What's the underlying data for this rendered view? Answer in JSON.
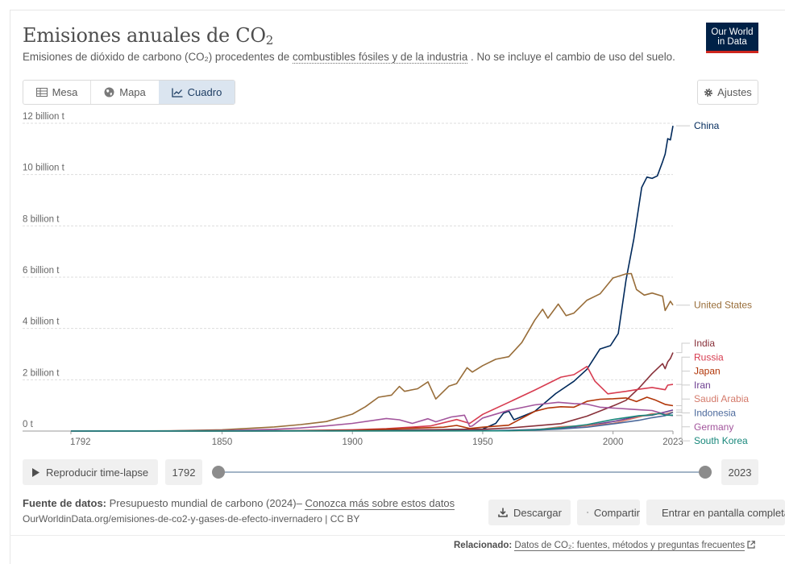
{
  "header": {
    "title": "Emisiones anuales de CO",
    "title_sub": "2",
    "subtitle_pre": "Emisiones de dióxido de carbono (CO₂) procedentes de ",
    "subtitle_link": "combustibles fósiles y de la industria",
    "subtitle_post": " . No se incluye el cambio de uso del suelo.",
    "logo_line1": "Our World",
    "logo_line2": "in Data"
  },
  "tabs": [
    {
      "label": "Mesa",
      "icon": "table-icon"
    },
    {
      "label": "Mapa",
      "icon": "globe-icon"
    },
    {
      "label": "Cuadro",
      "icon": "line-chart-icon",
      "active": true
    }
  ],
  "settings_label": "Ajustes",
  "timeline": {
    "play_label": "Reproducir time-lapse",
    "start_year": "1792",
    "end_year": "2023"
  },
  "footer": {
    "source_label": "Fuente de datos:",
    "source_text": " Presupuesto mundial de carbono (2024)– ",
    "source_link": "Conozca más sobre estos datos",
    "url_text": "OurWorldinData.org/emisiones-de-co2-y-gases-de-efecto-invernadero | CC BY",
    "download_label": "Descargar",
    "share_label": "Compartir",
    "fullscreen_label": "Entrar en pantalla completa",
    "related_label": "Relacionado:",
    "related_link": "Datos de CO₂: fuentes, métodos y preguntas frecuentes"
  },
  "chart_data": {
    "type": "line",
    "title": "Emisiones anuales de CO₂",
    "xlabel": "",
    "ylabel": "",
    "xlim": [
      1792,
      2023
    ],
    "ylim": [
      0,
      12
    ],
    "x_ticks": [
      "1792",
      "1850",
      "1900",
      "1950",
      "2000",
      "2023"
    ],
    "y_ticks": [
      {
        "value": 0,
        "label": "0 t"
      },
      {
        "value": 2,
        "label": "2 billion t"
      },
      {
        "value": 4,
        "label": "4 billion t"
      },
      {
        "value": 6,
        "label": "6 billion t"
      },
      {
        "value": 8,
        "label": "8 billion t"
      },
      {
        "value": 10,
        "label": "10 billion t"
      },
      {
        "value": 12,
        "label": "12 billion t"
      }
    ],
    "grid": true,
    "legend": "right end labels",
    "series": [
      {
        "name": "China",
        "color": "#00295b",
        "points": [
          [
            1792,
            0
          ],
          [
            1900,
            0.01
          ],
          [
            1950,
            0.08
          ],
          [
            1955,
            0.3
          ],
          [
            1958,
            0.7
          ],
          [
            1960,
            0.78
          ],
          [
            1962,
            0.44
          ],
          [
            1970,
            0.77
          ],
          [
            1978,
            1.46
          ],
          [
            1985,
            1.94
          ],
          [
            1990,
            2.41
          ],
          [
            1995,
            3.2
          ],
          [
            1999,
            3.33
          ],
          [
            2002,
            3.8
          ],
          [
            2005,
            5.9
          ],
          [
            2008,
            7.5
          ],
          [
            2011,
            9.5
          ],
          [
            2013,
            9.9
          ],
          [
            2015,
            9.85
          ],
          [
            2017,
            9.95
          ],
          [
            2019,
            10.5
          ],
          [
            2020,
            10.8
          ],
          [
            2021,
            11.4
          ],
          [
            2022,
            11.35
          ],
          [
            2023,
            11.9
          ]
        ]
      },
      {
        "name": "United States",
        "color": "#986d39",
        "points": [
          [
            1792,
            0
          ],
          [
            1830,
            0.01
          ],
          [
            1850,
            0.05
          ],
          [
            1870,
            0.16
          ],
          [
            1880,
            0.25
          ],
          [
            1890,
            0.37
          ],
          [
            1900,
            0.66
          ],
          [
            1905,
            0.95
          ],
          [
            1910,
            1.32
          ],
          [
            1915,
            1.4
          ],
          [
            1918,
            1.74
          ],
          [
            1920,
            1.55
          ],
          [
            1925,
            1.65
          ],
          [
            1929,
            1.92
          ],
          [
            1932,
            1.25
          ],
          [
            1937,
            1.75
          ],
          [
            1940,
            1.85
          ],
          [
            1944,
            2.47
          ],
          [
            1946,
            2.3
          ],
          [
            1950,
            2.55
          ],
          [
            1955,
            2.8
          ],
          [
            1960,
            2.9
          ],
          [
            1965,
            3.45
          ],
          [
            1970,
            4.33
          ],
          [
            1973,
            4.75
          ],
          [
            1975,
            4.4
          ],
          [
            1979,
            4.95
          ],
          [
            1982,
            4.5
          ],
          [
            1985,
            4.6
          ],
          [
            1990,
            5.1
          ],
          [
            1995,
            5.35
          ],
          [
            2000,
            5.97
          ],
          [
            2005,
            6.13
          ],
          [
            2007,
            6.14
          ],
          [
            2009,
            5.52
          ],
          [
            2012,
            5.3
          ],
          [
            2015,
            5.38
          ],
          [
            2019,
            5.26
          ],
          [
            2020,
            4.7
          ],
          [
            2022,
            5.06
          ],
          [
            2023,
            4.91
          ]
        ]
      },
      {
        "name": "India",
        "color": "#883039",
        "points": [
          [
            1792,
            0
          ],
          [
            1900,
            0.02
          ],
          [
            1950,
            0.07
          ],
          [
            1960,
            0.12
          ],
          [
            1970,
            0.2
          ],
          [
            1980,
            0.29
          ],
          [
            1990,
            0.58
          ],
          [
            2000,
            0.98
          ],
          [
            2005,
            1.2
          ],
          [
            2010,
            1.68
          ],
          [
            2015,
            2.24
          ],
          [
            2019,
            2.63
          ],
          [
            2020,
            2.43
          ],
          [
            2021,
            2.7
          ],
          [
            2022,
            2.83
          ],
          [
            2023,
            3.06
          ]
        ]
      },
      {
        "name": "Russia",
        "color": "#d73c50",
        "points": [
          [
            1792,
            0
          ],
          [
            1870,
            0.01
          ],
          [
            1900,
            0.05
          ],
          [
            1913,
            0.09
          ],
          [
            1930,
            0.2
          ],
          [
            1940,
            0.45
          ],
          [
            1945,
            0.3
          ],
          [
            1950,
            0.65
          ],
          [
            1960,
            1.12
          ],
          [
            1970,
            1.6
          ],
          [
            1980,
            2.1
          ],
          [
            1985,
            2.2
          ],
          [
            1990,
            2.52
          ],
          [
            1993,
            1.95
          ],
          [
            1998,
            1.45
          ],
          [
            2005,
            1.55
          ],
          [
            2010,
            1.63
          ],
          [
            2015,
            1.7
          ],
          [
            2020,
            1.61
          ],
          [
            2021,
            1.79
          ],
          [
            2023,
            1.82
          ]
        ]
      },
      {
        "name": "Japan",
        "color": "#b13507",
        "points": [
          [
            1792,
            0
          ],
          [
            1880,
            0.01
          ],
          [
            1900,
            0.03
          ],
          [
            1920,
            0.1
          ],
          [
            1935,
            0.15
          ],
          [
            1940,
            0.22
          ],
          [
            1945,
            0.1
          ],
          [
            1950,
            0.15
          ],
          [
            1960,
            0.23
          ],
          [
            1970,
            0.77
          ],
          [
            1975,
            0.9
          ],
          [
            1980,
            0.95
          ],
          [
            1985,
            0.93
          ],
          [
            1990,
            1.16
          ],
          [
            1995,
            1.24
          ],
          [
            2000,
            1.26
          ],
          [
            2005,
            1.29
          ],
          [
            2009,
            1.15
          ],
          [
            2013,
            1.32
          ],
          [
            2016,
            1.22
          ],
          [
            2020,
            1.04
          ],
          [
            2023,
            0.99
          ]
        ]
      },
      {
        "name": "Iran",
        "color": "#6d3e91",
        "points": [
          [
            1792,
            0
          ],
          [
            1950,
            0.01
          ],
          [
            1960,
            0.03
          ],
          [
            1970,
            0.06
          ],
          [
            1980,
            0.11
          ],
          [
            1990,
            0.21
          ],
          [
            2000,
            0.37
          ],
          [
            2010,
            0.58
          ],
          [
            2015,
            0.62
          ],
          [
            2020,
            0.74
          ],
          [
            2023,
            0.82
          ]
        ]
      },
      {
        "name": "Saudi Arabia",
        "color": "#d47a6b",
        "points": [
          [
            1792,
            0
          ],
          [
            1960,
            0.01
          ],
          [
            1970,
            0.04
          ],
          [
            1980,
            0.17
          ],
          [
            1990,
            0.21
          ],
          [
            2000,
            0.3
          ],
          [
            2010,
            0.55
          ],
          [
            2015,
            0.68
          ],
          [
            2020,
            0.66
          ],
          [
            2023,
            0.74
          ]
        ]
      },
      {
        "name": "Indonesia",
        "color": "#4c6a9c",
        "points": [
          [
            1792,
            0
          ],
          [
            1950,
            0.02
          ],
          [
            1970,
            0.03
          ],
          [
            1980,
            0.08
          ],
          [
            1990,
            0.15
          ],
          [
            2000,
            0.28
          ],
          [
            2010,
            0.42
          ],
          [
            2015,
            0.52
          ],
          [
            2020,
            0.6
          ],
          [
            2023,
            0.73
          ]
        ]
      },
      {
        "name": "Germany",
        "color": "#a2559c",
        "points": [
          [
            1792,
            0
          ],
          [
            1830,
            0.005
          ],
          [
            1850,
            0.02
          ],
          [
            1870,
            0.07
          ],
          [
            1880,
            0.12
          ],
          [
            1890,
            0.2
          ],
          [
            1900,
            0.3
          ],
          [
            1913,
            0.49
          ],
          [
            1918,
            0.44
          ],
          [
            1923,
            0.3
          ],
          [
            1929,
            0.48
          ],
          [
            1932,
            0.36
          ],
          [
            1938,
            0.55
          ],
          [
            1943,
            0.62
          ],
          [
            1945,
            0.18
          ],
          [
            1946,
            0.2
          ],
          [
            1950,
            0.51
          ],
          [
            1960,
            0.81
          ],
          [
            1970,
            1.02
          ],
          [
            1979,
            1.12
          ],
          [
            1985,
            1.07
          ],
          [
            1990,
            1.05
          ],
          [
            1995,
            0.93
          ],
          [
            2000,
            0.9
          ],
          [
            2010,
            0.83
          ],
          [
            2015,
            0.8
          ],
          [
            2020,
            0.65
          ],
          [
            2023,
            0.6
          ]
        ]
      },
      {
        "name": "South Korea",
        "color": "#18877b",
        "points": [
          [
            1792,
            0
          ],
          [
            1960,
            0.01
          ],
          [
            1970,
            0.05
          ],
          [
            1980,
            0.13
          ],
          [
            1990,
            0.25
          ],
          [
            2000,
            0.45
          ],
          [
            2010,
            0.6
          ],
          [
            2015,
            0.63
          ],
          [
            2018,
            0.69
          ],
          [
            2020,
            0.62
          ],
          [
            2023,
            0.62
          ]
        ]
      }
    ],
    "label_order": [
      "China",
      "United States",
      "India",
      "Russia",
      "Japan",
      "Iran",
      "Saudi Arabia",
      "Indonesia",
      "Germany",
      "South Korea"
    ]
  }
}
